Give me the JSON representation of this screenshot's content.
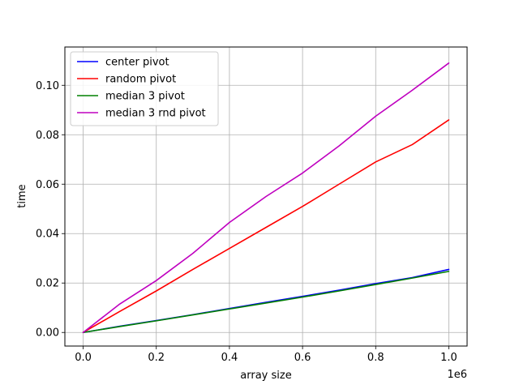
{
  "chart_data": {
    "type": "line",
    "xlabel": "array size",
    "ylabel": "time",
    "x_offset_label": "1e6",
    "xlim": [
      -50000,
      1050000
    ],
    "ylim": [
      -0.0055,
      0.1155
    ],
    "x_ticks": [
      0,
      200000,
      400000,
      600000,
      800000,
      1000000
    ],
    "x_tick_labels": [
      "0.0",
      "0.2",
      "0.4",
      "0.6",
      "0.8",
      "1.0"
    ],
    "y_ticks": [
      0,
      0.02,
      0.04,
      0.06,
      0.08,
      0.1
    ],
    "y_tick_labels": [
      "0.00",
      "0.02",
      "0.04",
      "0.06",
      "0.08",
      "0.10"
    ],
    "grid": true,
    "legend_position": "top-left",
    "x": [
      0,
      100000,
      200000,
      300000,
      400000,
      500000,
      600000,
      700000,
      800000,
      900000,
      1000000
    ],
    "series": [
      {
        "name": "center pivot",
        "color": "#0000ff",
        "values": [
          0,
          0.0025,
          0.0048,
          0.0072,
          0.0097,
          0.0122,
          0.0146,
          0.0171,
          0.0198,
          0.0222,
          0.0255
        ]
      },
      {
        "name": "random pivot",
        "color": "#ff0000",
        "values": [
          0,
          0.0085,
          0.0168,
          0.0255,
          0.034,
          0.0425,
          0.051,
          0.06,
          0.069,
          0.076,
          0.086
        ]
      },
      {
        "name": "median 3 pivot",
        "color": "#008000",
        "values": [
          0,
          0.0024,
          0.0047,
          0.0071,
          0.0095,
          0.0119,
          0.0143,
          0.0168,
          0.0194,
          0.022,
          0.0247
        ]
      },
      {
        "name": "median 3 rnd pivot",
        "color": "#bf00bf",
        "values": [
          0,
          0.0115,
          0.021,
          0.032,
          0.0445,
          0.055,
          0.0645,
          0.0755,
          0.0875,
          0.098,
          0.109
        ]
      }
    ]
  }
}
